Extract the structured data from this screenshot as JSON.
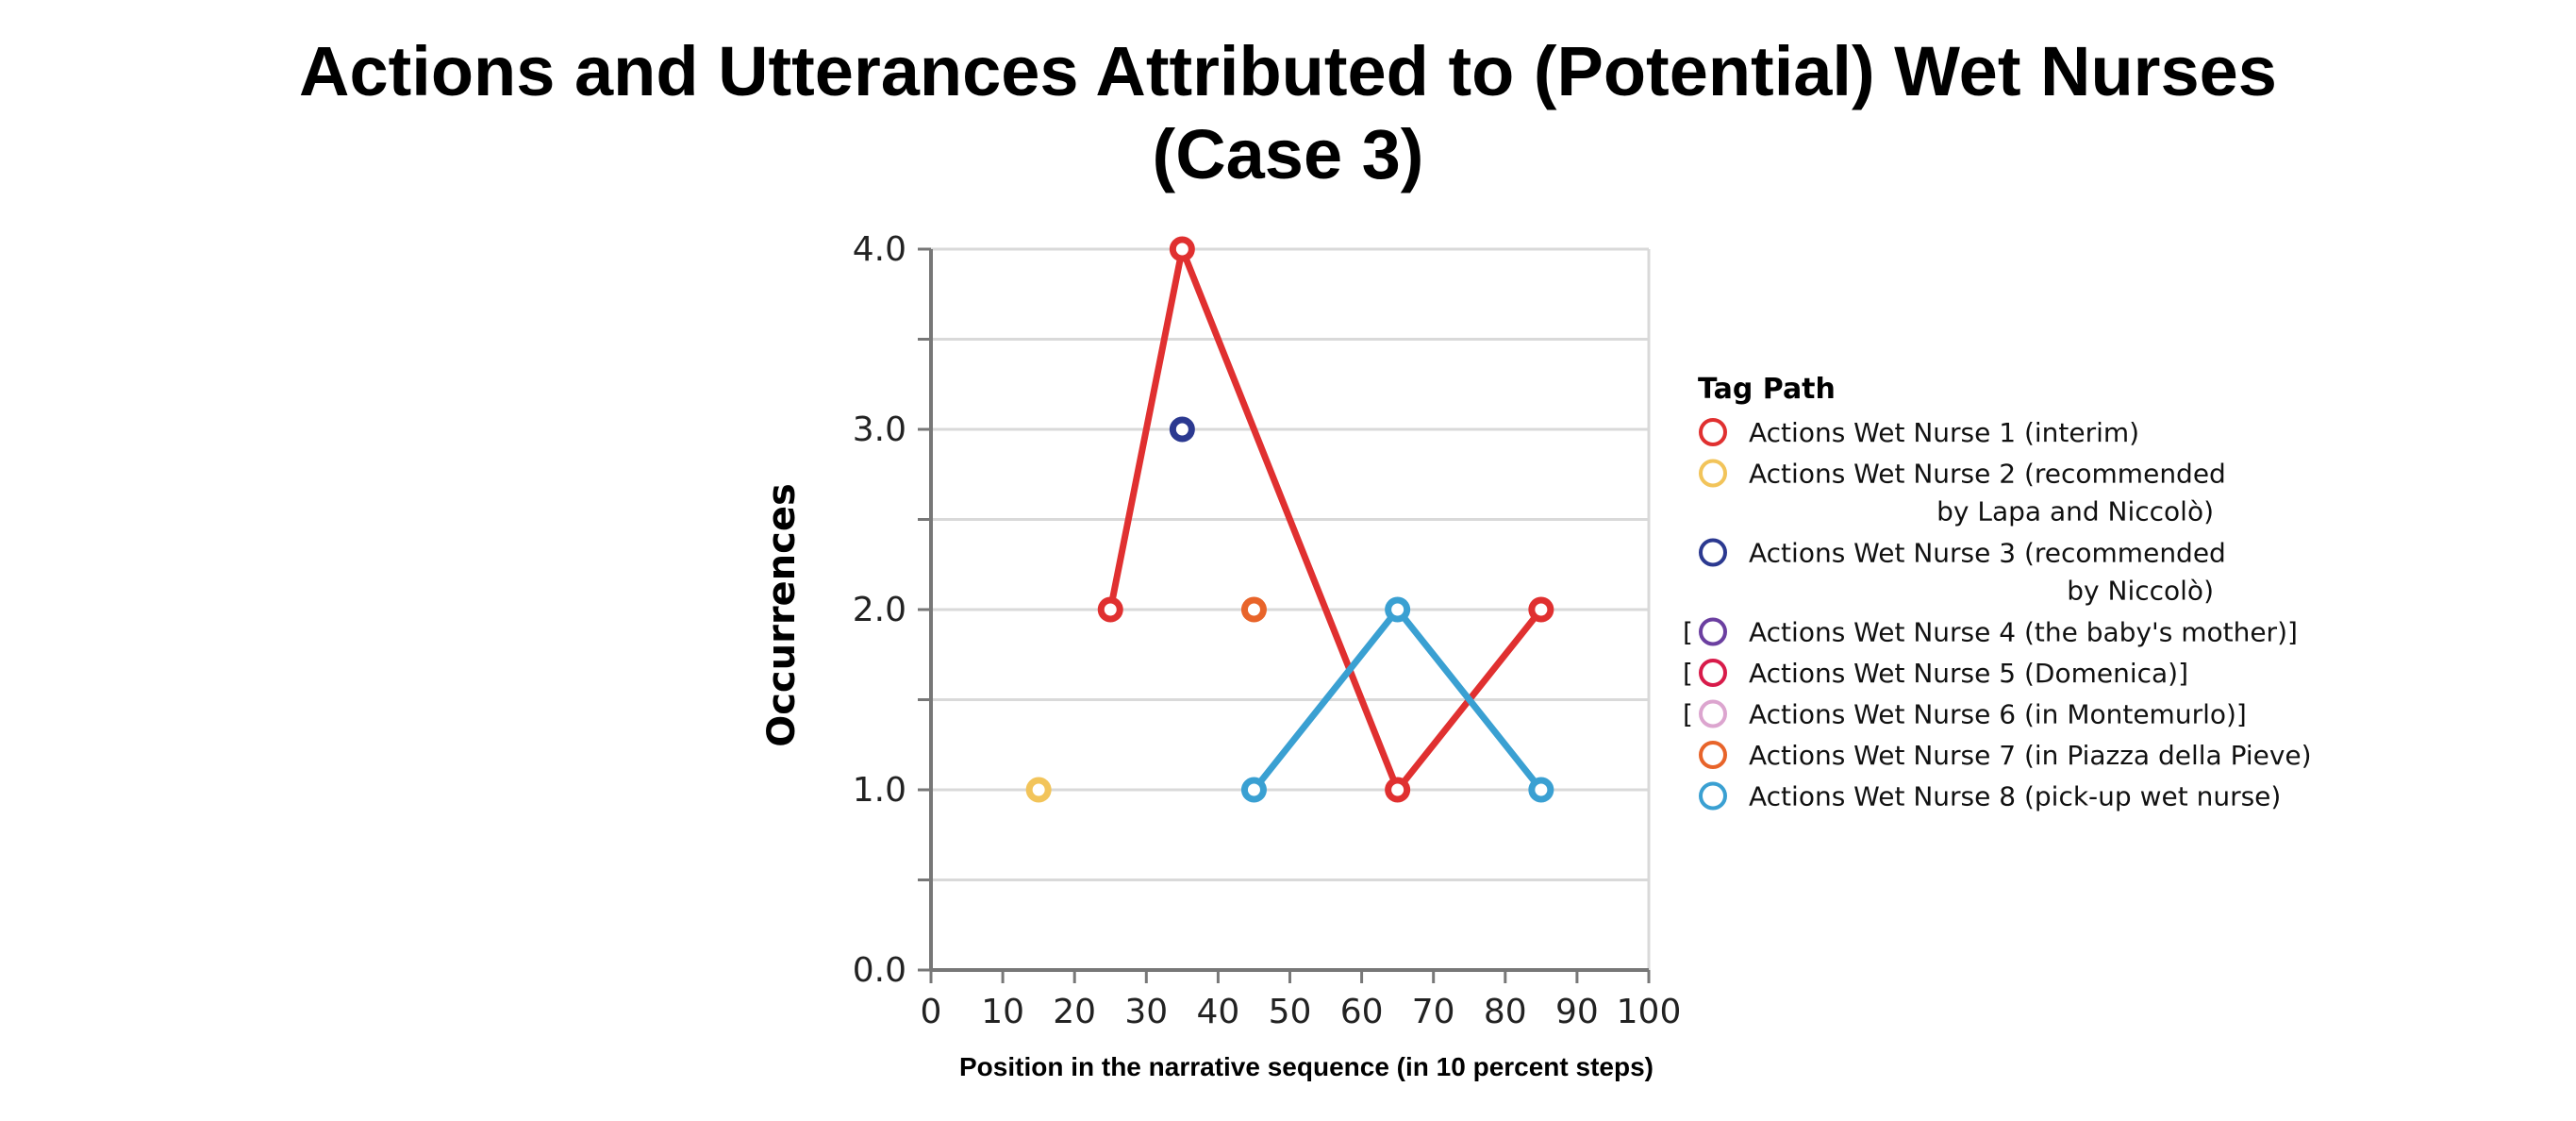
{
  "chart_data": {
    "type": "line",
    "title_lines": [
      "Actions and Utterances Attributed to (Potential) Wet Nurses",
      "(Case 3)"
    ],
    "xlabel": "Position in the narrative sequence (in 10 percent steps)",
    "ylabel": "Occurrences",
    "xlim": [
      0,
      100
    ],
    "ylim": [
      0,
      4
    ],
    "x_ticks": [
      "0",
      "10",
      "20",
      "30",
      "40",
      "50",
      "60",
      "70",
      "80",
      "90",
      "100"
    ],
    "y_ticks": [
      "0.0",
      "1.0",
      "2.0",
      "3.0",
      "4.0"
    ],
    "grid": true,
    "legend_title": "Tag Path",
    "legend_position": "right",
    "series": [
      {
        "name": "Actions Wet Nurse 1 (interim)",
        "color": "#e03030",
        "x": [
          25,
          35,
          65,
          85
        ],
        "y": [
          2,
          4,
          1,
          2
        ],
        "bracket": false
      },
      {
        "name": "Actions Wet Nurse 2 (recommended",
        "name_cont": "by Lapa and Niccolò)",
        "color": "#f2c45a",
        "x": [
          15
        ],
        "y": [
          1
        ],
        "bracket": false
      },
      {
        "name": "Actions Wet Nurse 3 (recommended",
        "name_cont": "by Niccolò)",
        "color": "#2b3990",
        "x": [
          35
        ],
        "y": [
          3
        ],
        "bracket": false
      },
      {
        "name": "Actions Wet Nurse 4 (the baby's mother)]",
        "color": "#6b3fa0",
        "x": [],
        "y": [],
        "bracket": true
      },
      {
        "name": "Actions Wet Nurse 5 (Domenica)]",
        "color": "#d81b4a",
        "x": [],
        "y": [],
        "bracket": true
      },
      {
        "name": "Actions Wet Nurse 6 (in Montemurlo)]",
        "color": "#dca5cf",
        "x": [],
        "y": [],
        "bracket": true
      },
      {
        "name": "Actions Wet Nurse 7 (in Piazza della Pieve)",
        "color": "#e8642a",
        "x": [
          45
        ],
        "y": [
          2
        ],
        "bracket": false
      },
      {
        "name": "Actions Wet Nurse 8 (pick-up wet nurse)",
        "color": "#3aa0d2",
        "x": [
          45,
          65,
          85
        ],
        "y": [
          1,
          2,
          1
        ],
        "bracket": false
      }
    ]
  }
}
